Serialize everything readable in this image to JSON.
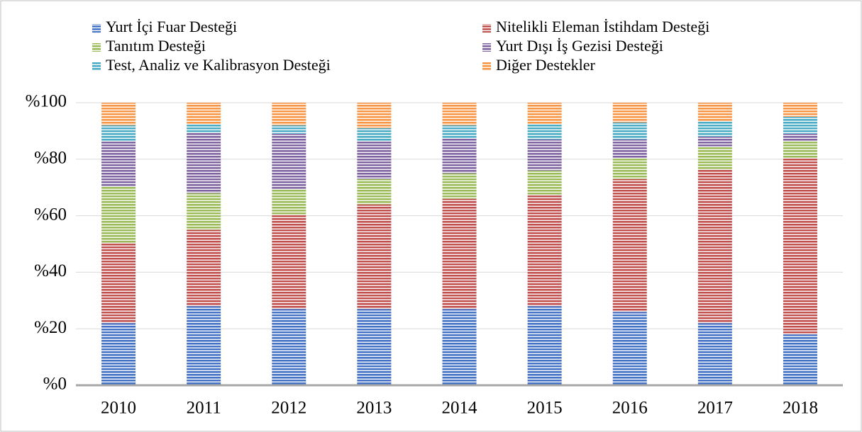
{
  "chart_data": {
    "type": "stacked-bar",
    "categories": [
      "2010",
      "2011",
      "2012",
      "2013",
      "2014",
      "2015",
      "2016",
      "2017",
      "2018"
    ],
    "series": [
      {
        "name": "Yurt İçi Fuar Desteği",
        "color": "#4472c4",
        "values": [
          22,
          28,
          27,
          27,
          27,
          28,
          26,
          22,
          18
        ]
      },
      {
        "name": "Nitelikli Eleman İstihdam Desteği",
        "color": "#c0504d",
        "values": [
          28.5,
          27,
          33.5,
          37,
          39,
          39.5,
          47,
          54.5,
          62.5
        ]
      },
      {
        "name": "Tanıtım Desteği",
        "color": "#9bbb59",
        "values": [
          20,
          13,
          9,
          9,
          9,
          8.5,
          7.5,
          8,
          6
        ]
      },
      {
        "name": "Yurt Dışı İş Gezisi Desteği",
        "color": "#8064a2",
        "values": [
          16,
          21.5,
          19.5,
          13.5,
          12.5,
          11,
          6.5,
          3.5,
          2.5
        ]
      },
      {
        "name": "Test, Analiz ve Kalibrasyon Desteği",
        "color": "#4bacc6",
        "values": [
          5.5,
          3,
          3,
          4.5,
          4.5,
          5.5,
          6,
          5.5,
          6
        ]
      },
      {
        "name": "Diğer Destekler",
        "color": "#f79646",
        "values": [
          8,
          7.5,
          8,
          9,
          8,
          7.5,
          7,
          6.5,
          5
        ]
      }
    ],
    "ylim": [
      0,
      100
    ],
    "yticks": [
      {
        "value": 0,
        "label": "%0"
      },
      {
        "value": 20,
        "label": "%20"
      },
      {
        "value": 40,
        "label": "%40"
      },
      {
        "value": 60,
        "label": "%60"
      },
      {
        "value": 80,
        "label": "%80"
      },
      {
        "value": 100,
        "label": "%100"
      }
    ],
    "grid": true,
    "legend": "top"
  }
}
